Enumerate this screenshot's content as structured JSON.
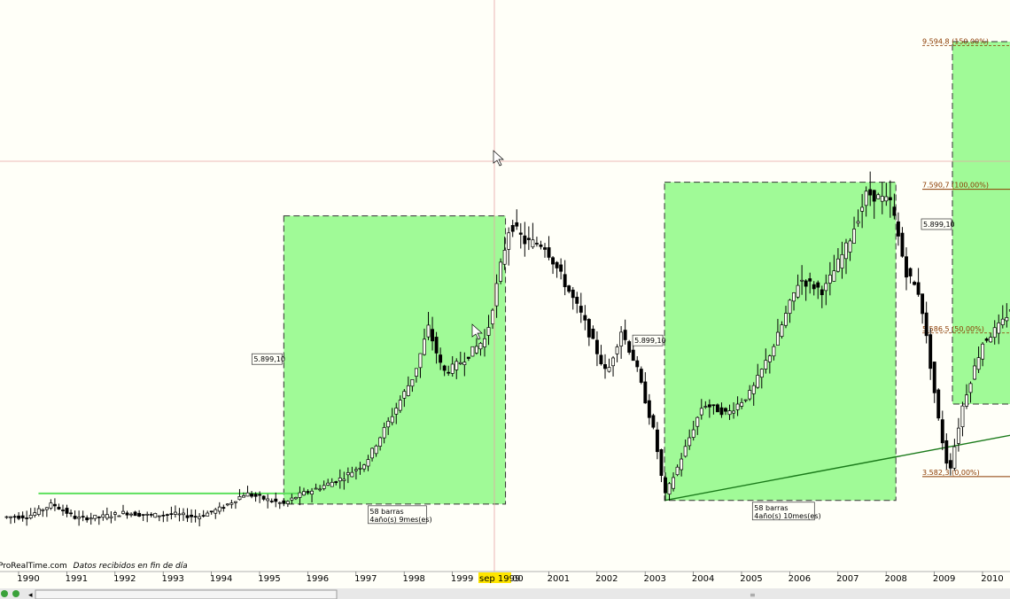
{
  "chart_data": {
    "type": "candlestick",
    "title": "",
    "xlabel": "",
    "ylabel": "",
    "x_ticks": [
      "1990",
      "1991",
      "1992",
      "1993",
      "1994",
      "1995",
      "1996",
      "1997",
      "1998",
      "1999",
      "2001",
      "2002",
      "2003",
      "2004",
      "2005",
      "2006",
      "2007",
      "2008",
      "2009",
      "2010"
    ],
    "cursor_label": "sep 1999",
    "cursor_label_suffix": "00",
    "footer": {
      "source": "ProRealTime.com",
      "note": "Datos recibidos en fin de día"
    },
    "ranges": [
      {
        "id": "range1",
        "start": "1995.3",
        "end": "1999.9",
        "low": 3200,
        "high": 7220,
        "height_label": "5.899,10",
        "bars_label": "58 barras",
        "duration_label": "4año(s) 9mes(es)"
      },
      {
        "id": "range2",
        "start": "2003.2",
        "end": "2008.0",
        "low": 3250,
        "high": 7690,
        "height_label": "5.899,10",
        "bars_label": "58 barras",
        "duration_label": "4año(s) 10mes(es)"
      }
    ],
    "floating_label": "5.899,10",
    "fibonacci": {
      "start": "2009.1",
      "levels": [
        {
          "label": "9.594,8 (150,00%)",
          "value": 9594.8
        },
        {
          "label": "7.590,7 (100,00%)",
          "value": 7590.7
        },
        {
          "label": "5.586,5 (50,00%)",
          "value": 5586.5
        },
        {
          "label": "3.582,3 (0,00%)",
          "value": 3582.3
        }
      ]
    },
    "trendline": {
      "from": [
        "2003.2",
        3250
      ],
      "to": [
        "2010.4",
        4240
      ]
    },
    "support_line": {
      "from": [
        "1990.1",
        3200
      ],
      "to": [
        "1995.9",
        3200
      ]
    },
    "series": [
      {
        "name": "",
        "x": [
          1989.55,
          1990.0,
          1990.5,
          1991.0,
          1991.5,
          1992.0,
          1992.5,
          1993.0,
          1993.5,
          1994.0,
          1994.5,
          1995.0,
          1995.3,
          1995.6,
          1996.0,
          1996.5,
          1997.0,
          1997.5,
          1998.0,
          1998.3,
          1998.6,
          1998.8,
          1999.0,
          1999.5,
          1999.8,
          2000.0,
          2000.3,
          2000.7,
          2001.0,
          2001.5,
          2002.0,
          2002.3,
          2002.6,
          2003.0,
          2003.2,
          2003.5,
          2004.0,
          2004.5,
          2005.0,
          2005.5,
          2006.0,
          2006.5,
          2007.0,
          2007.4,
          2007.9,
          2008.2,
          2008.5,
          2008.9,
          2009.1,
          2009.4,
          2009.8,
          2010.2,
          2010.4
        ],
        "y": [
          3020,
          3030,
          3200,
          3000,
          3020,
          3080,
          3040,
          3060,
          3020,
          3140,
          3350,
          3250,
          3200,
          3320,
          3420,
          3560,
          3780,
          4380,
          5000,
          5660,
          5040,
          5100,
          5200,
          5520,
          6520,
          7120,
          6860,
          6820,
          6450,
          5800,
          5000,
          5620,
          5150,
          4150,
          3300,
          3760,
          4600,
          4460,
          4760,
          5460,
          6340,
          6170,
          6820,
          7540,
          7400,
          6450,
          6120,
          4300,
          3620,
          4620,
          5450,
          5720,
          5950
        ]
      }
    ]
  }
}
